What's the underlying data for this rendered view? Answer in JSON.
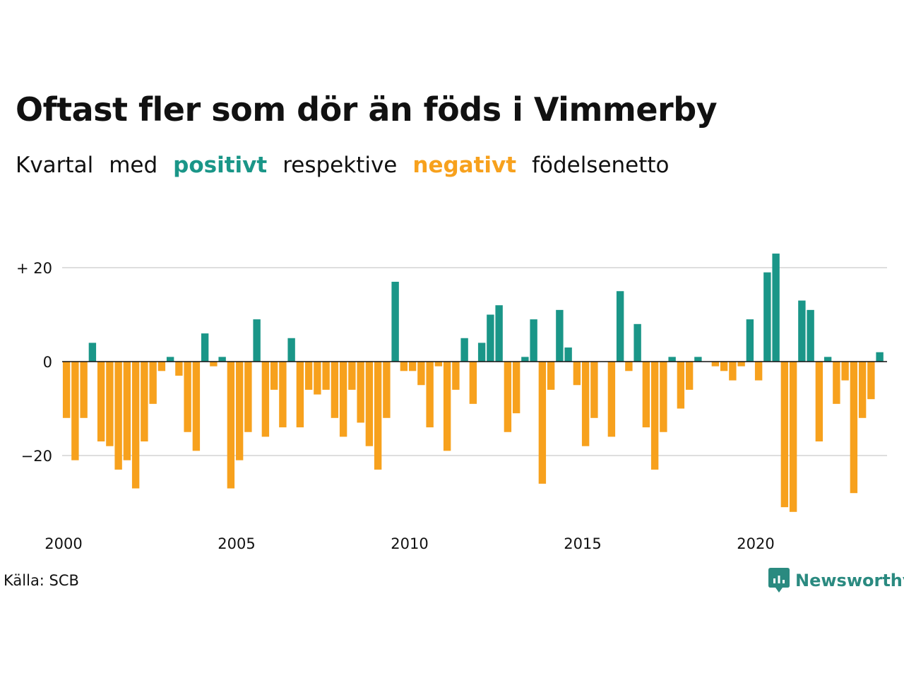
{
  "colors": {
    "positive": "#1a9688",
    "negative": "#f7a11d",
    "grid": "#dedede",
    "axis": "#111111",
    "logo": "#2a8a80"
  },
  "title": "Oftast fler som dör än föds i Vimmerby",
  "subtitle": {
    "part1": "Kvartal",
    "part2": "med",
    "positive_word": "positivt",
    "part3": "respektive",
    "negative_word": "negativt",
    "part4": "födelsenetto"
  },
  "source": "Källa: SCB",
  "logo": {
    "text": "Newsworthy",
    "icon": "newsworthy-logo-icon"
  },
  "chart_data": {
    "type": "bar",
    "start_year": 2000,
    "periods_per_year": 4,
    "ylim": [
      -35,
      25
    ],
    "y_ticks": [
      {
        "value": 20,
        "label": "+ 20"
      },
      {
        "value": 0,
        "label": "0"
      },
      {
        "value": -20,
        "label": "−20"
      }
    ],
    "x_ticks": [
      {
        "value": 2000,
        "label": "2000"
      },
      {
        "value": 2005,
        "label": "2005"
      },
      {
        "value": 2010,
        "label": "2010"
      },
      {
        "value": 2015,
        "label": "2015"
      },
      {
        "value": 2020,
        "label": "2020"
      }
    ],
    "grid": true,
    "values": [
      -12,
      -21,
      -12,
      4,
      -17,
      -18,
      -23,
      -21,
      -27,
      -17,
      -9,
      -2,
      1,
      -3,
      -15,
      -19,
      6,
      -1,
      1,
      -27,
      -21,
      -15,
      9,
      -16,
      -6,
      -14,
      5,
      -14,
      -6,
      -7,
      -6,
      -12,
      -16,
      -6,
      -13,
      -18,
      -23,
      -12,
      17,
      -2,
      -2,
      -5,
      -14,
      -1,
      -19,
      -6,
      5,
      -9,
      4,
      10,
      12,
      -15,
      -11,
      1,
      9,
      -26,
      -6,
      11,
      3,
      -5,
      -18,
      -12,
      0,
      -16,
      15,
      -2,
      8,
      -14,
      -23,
      -15,
      1,
      -10,
      -6,
      1,
      0,
      -1,
      -2,
      -4,
      -1,
      9,
      -4,
      19,
      23,
      -31,
      -32,
      13,
      11,
      -17,
      1,
      -9,
      -4,
      -28,
      -12,
      -8,
      2
    ]
  }
}
